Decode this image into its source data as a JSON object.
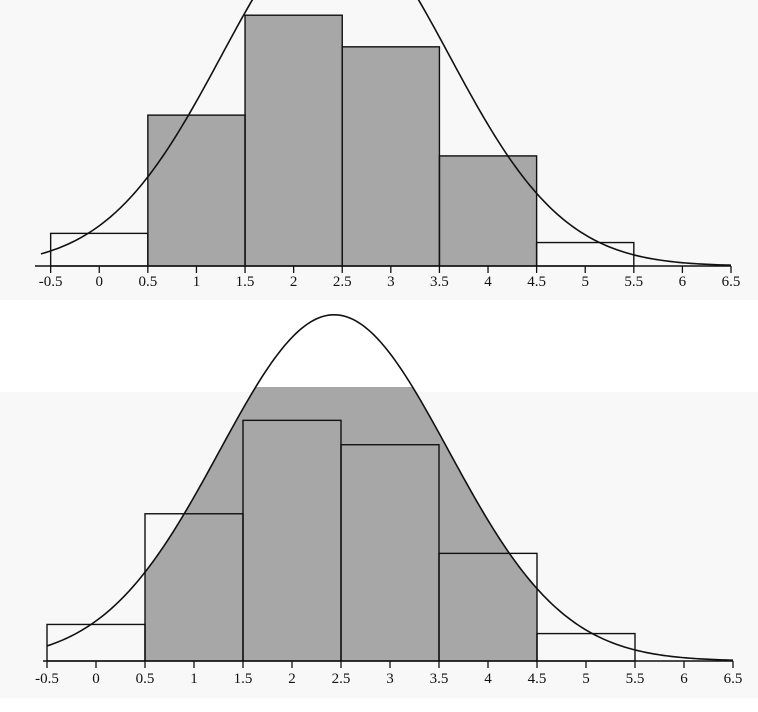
{
  "colors": {
    "shade": "#a7a7a7",
    "outline": "#111111",
    "page": "#ffffff",
    "scan_noise": "#e4e4e4"
  },
  "chart_data": [
    {
      "type": "histogram_with_normal_curve",
      "shading": "area under curve outside bars, bars extend beyond curve unshaded",
      "bins": [
        {
          "from": -0.5,
          "to": 0.5,
          "value": 0.032
        },
        {
          "from": 0.5,
          "to": 1.5,
          "value": 0.148
        },
        {
          "from": 1.5,
          "to": 2.5,
          "value": 0.246
        },
        {
          "from": 2.5,
          "to": 3.5,
          "value": 0.215
        },
        {
          "from": 3.5,
          "to": 4.5,
          "value": 0.108
        },
        {
          "from": 4.5,
          "to": 5.5,
          "value": 0.023
        }
      ],
      "curve": {
        "mean": 2.43,
        "sd": 1.17
      },
      "xlim": [
        -0.62,
        6.5
      ],
      "ylim": [
        0,
        0.257
      ],
      "ticks": [
        -0.5,
        0,
        0.5,
        1,
        1.5,
        2,
        2.5,
        3,
        3.5,
        4,
        4.5,
        5,
        5.5,
        6,
        6.5
      ],
      "tick_labels": [
        "-0.5",
        "0",
        "0.5",
        "1",
        "1.5",
        "2",
        "2.5",
        "3",
        "3.5",
        "4",
        "4.5",
        "5",
        "5.5",
        "6",
        "6.5"
      ]
    },
    {
      "type": "histogram_with_normal_curve",
      "shading": "area under curve inside bars",
      "bins": [
        {
          "from": -0.5,
          "to": 0.5,
          "value": 0.036
        },
        {
          "from": 0.5,
          "to": 1.5,
          "value": 0.145
        },
        {
          "from": 1.5,
          "to": 2.5,
          "value": 0.237
        },
        {
          "from": 2.5,
          "to": 3.5,
          "value": 0.213
        },
        {
          "from": 3.5,
          "to": 4.5,
          "value": 0.106
        },
        {
          "from": 4.5,
          "to": 5.5,
          "value": 0.027
        }
      ],
      "curve": {
        "mean": 2.43,
        "sd": 1.17
      },
      "xlim": [
        -0.5,
        6.5
      ],
      "ylim": [
        0,
        0.26
      ],
      "ticks": [
        -0.5,
        0,
        0.5,
        1,
        1.5,
        2,
        2.5,
        3,
        3.5,
        4,
        4.5,
        5,
        5.5,
        6,
        6.5
      ],
      "tick_labels": [
        "-0.5",
        "0",
        "0.5",
        "1",
        "1.5",
        "2",
        "2.5",
        "3",
        "3.5",
        "4",
        "4.5",
        "5",
        "5.5",
        "6",
        "6.5"
      ]
    }
  ]
}
